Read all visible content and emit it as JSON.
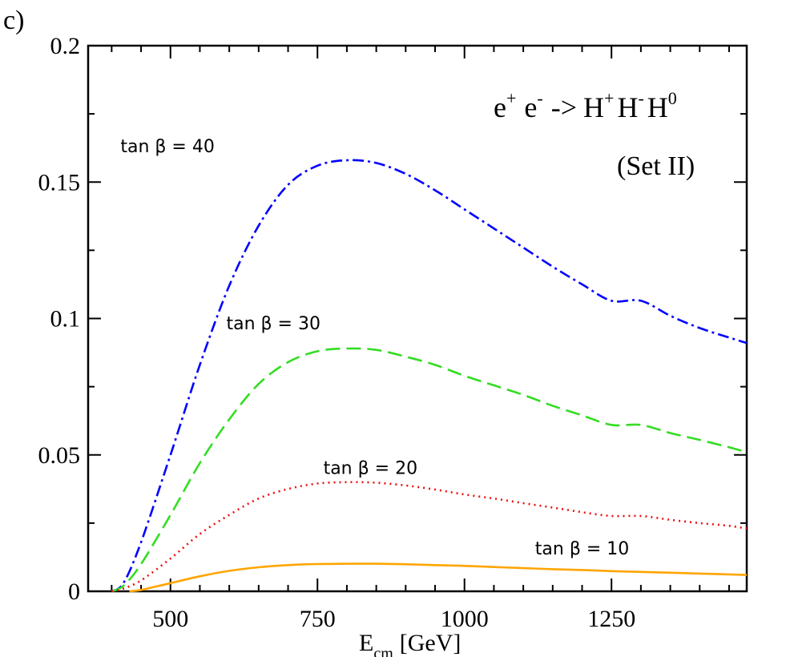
{
  "panel_label": "c)",
  "chart_data": {
    "type": "line",
    "xlabel": "E",
    "xlabel_sub": "cm",
    "xlabel_unit": "[GeV]",
    "ylabel": "",
    "xlim": [
      360,
      1480
    ],
    "ylim": [
      0,
      0.2
    ],
    "xticks": [
      500,
      750,
      1000,
      1250
    ],
    "xtick_labels": [
      "500",
      "750",
      "1000",
      "1250"
    ],
    "xminor_step": 50,
    "yticks": [
      0,
      0.05,
      0.1,
      0.15,
      0.2
    ],
    "ytick_labels": [
      "0",
      "0.05",
      "0.1",
      "0.15",
      "0.2"
    ],
    "yminor_step": 0.025,
    "process": {
      "base1": "e",
      "sup1": "+",
      "base2": "e",
      "sup2": "-",
      "arrow": "->",
      "base3": "H",
      "sup3": "+",
      "base4": "H",
      "sup4": "-",
      "base5": "H",
      "sup5": "0"
    },
    "set_label": "(Set II)",
    "series": [
      {
        "name": "tan β = 40",
        "color": "#0000ff",
        "dash": "14 5 3 5",
        "x": [
          400,
          420,
          450,
          500,
          550,
          600,
          650,
          700,
          750,
          800,
          850,
          900,
          950,
          1000,
          1050,
          1100,
          1150,
          1200,
          1250,
          1300,
          1350,
          1400,
          1450,
          1480
        ],
        "y": [
          0,
          0.003,
          0.018,
          0.05,
          0.083,
          0.112,
          0.134,
          0.149,
          0.156,
          0.158,
          0.157,
          0.153,
          0.147,
          0.14,
          0.133,
          0.126,
          0.119,
          0.1125,
          0.1065,
          0.1065,
          0.101,
          0.0965,
          0.093,
          0.091
        ]
      },
      {
        "name": "tan β = 30",
        "color": "#33dd22",
        "dash": "18 8",
        "x": [
          400,
          420,
          450,
          500,
          550,
          600,
          650,
          700,
          750,
          800,
          850,
          900,
          950,
          1000,
          1050,
          1100,
          1150,
          1200,
          1250,
          1300,
          1350,
          1400,
          1450,
          1480
        ],
        "y": [
          0,
          0.002,
          0.01,
          0.028,
          0.047,
          0.063,
          0.076,
          0.084,
          0.088,
          0.089,
          0.0885,
          0.086,
          0.083,
          0.079,
          0.0755,
          0.072,
          0.068,
          0.0645,
          0.061,
          0.061,
          0.058,
          0.0555,
          0.0528,
          0.051
        ]
      },
      {
        "name": "tan β = 20",
        "color": "#ee1111",
        "dash": "2 5",
        "x": [
          400,
          420,
          450,
          500,
          550,
          600,
          650,
          700,
          750,
          800,
          850,
          900,
          950,
          1000,
          1050,
          1100,
          1150,
          1200,
          1250,
          1300,
          1350,
          1400,
          1450,
          1480
        ],
        "y": [
          0,
          0.001,
          0.004,
          0.012,
          0.021,
          0.028,
          0.034,
          0.0375,
          0.0395,
          0.04,
          0.0398,
          0.0388,
          0.0373,
          0.0355,
          0.034,
          0.0323,
          0.0307,
          0.029,
          0.0276,
          0.0276,
          0.0262,
          0.025,
          0.024,
          0.023
        ]
      },
      {
        "name": "tan β = 10",
        "color": "#ffa500",
        "dash": "",
        "x": [
          430,
          450,
          500,
          550,
          600,
          650,
          700,
          750,
          800,
          850,
          900,
          950,
          1000,
          1050,
          1100,
          1150,
          1200,
          1250,
          1300,
          1350,
          1400,
          1450,
          1480
        ],
        "y": [
          0,
          0.0005,
          0.003,
          0.0055,
          0.0075,
          0.0088,
          0.0096,
          0.01,
          0.0101,
          0.0101,
          0.0099,
          0.0096,
          0.0093,
          0.0089,
          0.0085,
          0.0081,
          0.0078,
          0.0074,
          0.0071,
          0.0068,
          0.0065,
          0.0062,
          0.006
        ]
      }
    ],
    "annotations": [
      {
        "text": "tan β = 40",
        "x": 415,
        "y": 0.161
      },
      {
        "text": "tan β = 30",
        "x": 595,
        "y": 0.096
      },
      {
        "text": "tan β = 20",
        "x": 760,
        "y": 0.043
      },
      {
        "text": "tan β = 10",
        "x": 1120,
        "y": 0.0135
      }
    ]
  }
}
